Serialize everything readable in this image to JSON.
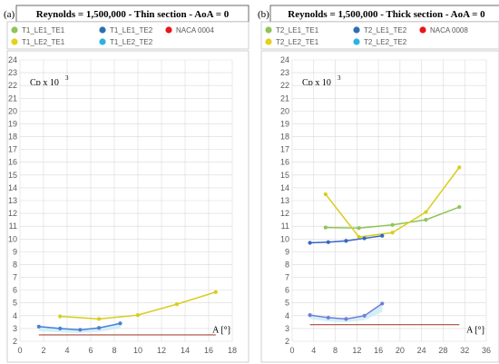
{
  "chart_data": [
    {
      "type": "line",
      "panel_label": "(a)",
      "title": "Reynolds = 1,500,000 - Thin section - AoA = 0",
      "ylabel": "Cᴅ x 10",
      "ylabel_exp": "3",
      "xlabel": "A [°]",
      "xlim": [
        0,
        18
      ],
      "ylim": [
        2,
        24
      ],
      "xticks": [
        0,
        2,
        4,
        6,
        8,
        10,
        12,
        14,
        16,
        18
      ],
      "yticks": [
        2,
        3,
        4,
        5,
        6,
        7,
        8,
        9,
        10,
        11,
        12,
        13,
        14,
        15,
        16,
        17,
        18,
        19,
        20,
        21,
        22,
        23,
        24
      ],
      "grid": true,
      "legend_position": "top",
      "legend": [
        {
          "name": "T1_LE1_TE1",
          "color": "#8fc45a"
        },
        {
          "name": "T1_LE1_TE2",
          "color": "#2e6eb8"
        },
        {
          "name": "NACA 0004",
          "color": "#e8161b"
        },
        {
          "name": "T1_LE2_TE1",
          "color": "#e2d21a"
        },
        {
          "name": "T1_LE2_TE2",
          "color": "#2fb0e6"
        }
      ],
      "series": [
        {
          "key": "LE2_TE1",
          "color": "#d9cd1e",
          "x": [
            3.4,
            6.7,
            10.0,
            13.3,
            16.6
          ],
          "y": [
            3.95,
            3.75,
            4.05,
            4.9,
            5.85
          ]
        },
        {
          "key": "LE1_TE2",
          "color": "#4a7fd4",
          "x": [
            1.6,
            3.4,
            5.1,
            6.7,
            8.5
          ],
          "y": [
            3.15,
            3.0,
            2.9,
            3.05,
            3.4
          ]
        },
        {
          "key": "NACA",
          "color": "#a84a3a",
          "x": [
            1.6,
            16.6
          ],
          "y": [
            2.5,
            2.5
          ]
        }
      ],
      "band": {
        "color": "#c9ebf5",
        "x": [
          1.6,
          3.4,
          5.1,
          6.7,
          8.5
        ],
        "y_low": [
          2.8,
          2.7,
          2.65,
          2.75,
          3.0
        ],
        "y_high": [
          3.15,
          3.0,
          2.9,
          3.05,
          3.4
        ]
      }
    },
    {
      "type": "line",
      "panel_label": "(b)",
      "title": "Reynolds = 1,500,000 - Thick section - AoA = 0",
      "ylabel": "Cᴅ x 10",
      "ylabel_exp": "3",
      "xlabel": "A [°]",
      "xlim": [
        0,
        36
      ],
      "ylim": [
        2,
        24
      ],
      "xticks": [
        0,
        4,
        8,
        12,
        16,
        20,
        24,
        28,
        32,
        36
      ],
      "yticks": [
        2,
        3,
        4,
        5,
        6,
        7,
        8,
        9,
        10,
        11,
        12,
        13,
        14,
        15,
        16,
        17,
        18,
        19,
        20,
        21,
        22,
        23,
        24
      ],
      "grid": true,
      "legend_position": "top",
      "legend": [
        {
          "name": "T2_LE1_TE1",
          "color": "#8fc45a"
        },
        {
          "name": "T2_LE1_TE2",
          "color": "#2e6eb8"
        },
        {
          "name": "NACA 0008",
          "color": "#e8161b"
        },
        {
          "name": "T2_LE2_TE1",
          "color": "#e2d21a"
        },
        {
          "name": "T2_LE2_TE2",
          "color": "#2fb0e6"
        }
      ],
      "series": [
        {
          "key": "LE1_TE1",
          "color": "#8fc45a",
          "x": [
            6.2,
            12.4,
            18.6,
            24.8,
            31.0
          ],
          "y": [
            10.9,
            10.85,
            11.1,
            11.5,
            12.5
          ]
        },
        {
          "key": "LE2_TE1",
          "color": "#d9cd1e",
          "x": [
            6.2,
            12.4,
            18.6,
            24.8,
            31.0
          ],
          "y": [
            13.5,
            10.15,
            10.5,
            12.1,
            15.6
          ]
        },
        {
          "key": "LE1_TE2",
          "color": "#3566c4",
          "x": [
            3.3,
            6.7,
            10.0,
            13.4,
            16.7
          ],
          "y": [
            9.7,
            9.75,
            9.85,
            10.05,
            10.25
          ]
        },
        {
          "key": "LE2_TE2",
          "color": "#6f7ddb",
          "x": [
            3.3,
            6.7,
            10.0,
            13.4,
            16.7
          ],
          "y": [
            4.05,
            3.85,
            3.75,
            4.0,
            4.95
          ]
        },
        {
          "key": "NACA",
          "color": "#a84a3a",
          "x": [
            3.3,
            31.0
          ],
          "y": [
            3.3,
            3.3
          ]
        }
      ],
      "band": {
        "color": "#c9ebf5",
        "x": [
          3.3,
          6.7,
          10.0,
          13.4,
          16.7
        ],
        "y_low": [
          3.75,
          3.55,
          3.5,
          3.65,
          4.3
        ],
        "y_high": [
          4.05,
          3.85,
          3.75,
          4.0,
          4.95
        ]
      }
    }
  ]
}
